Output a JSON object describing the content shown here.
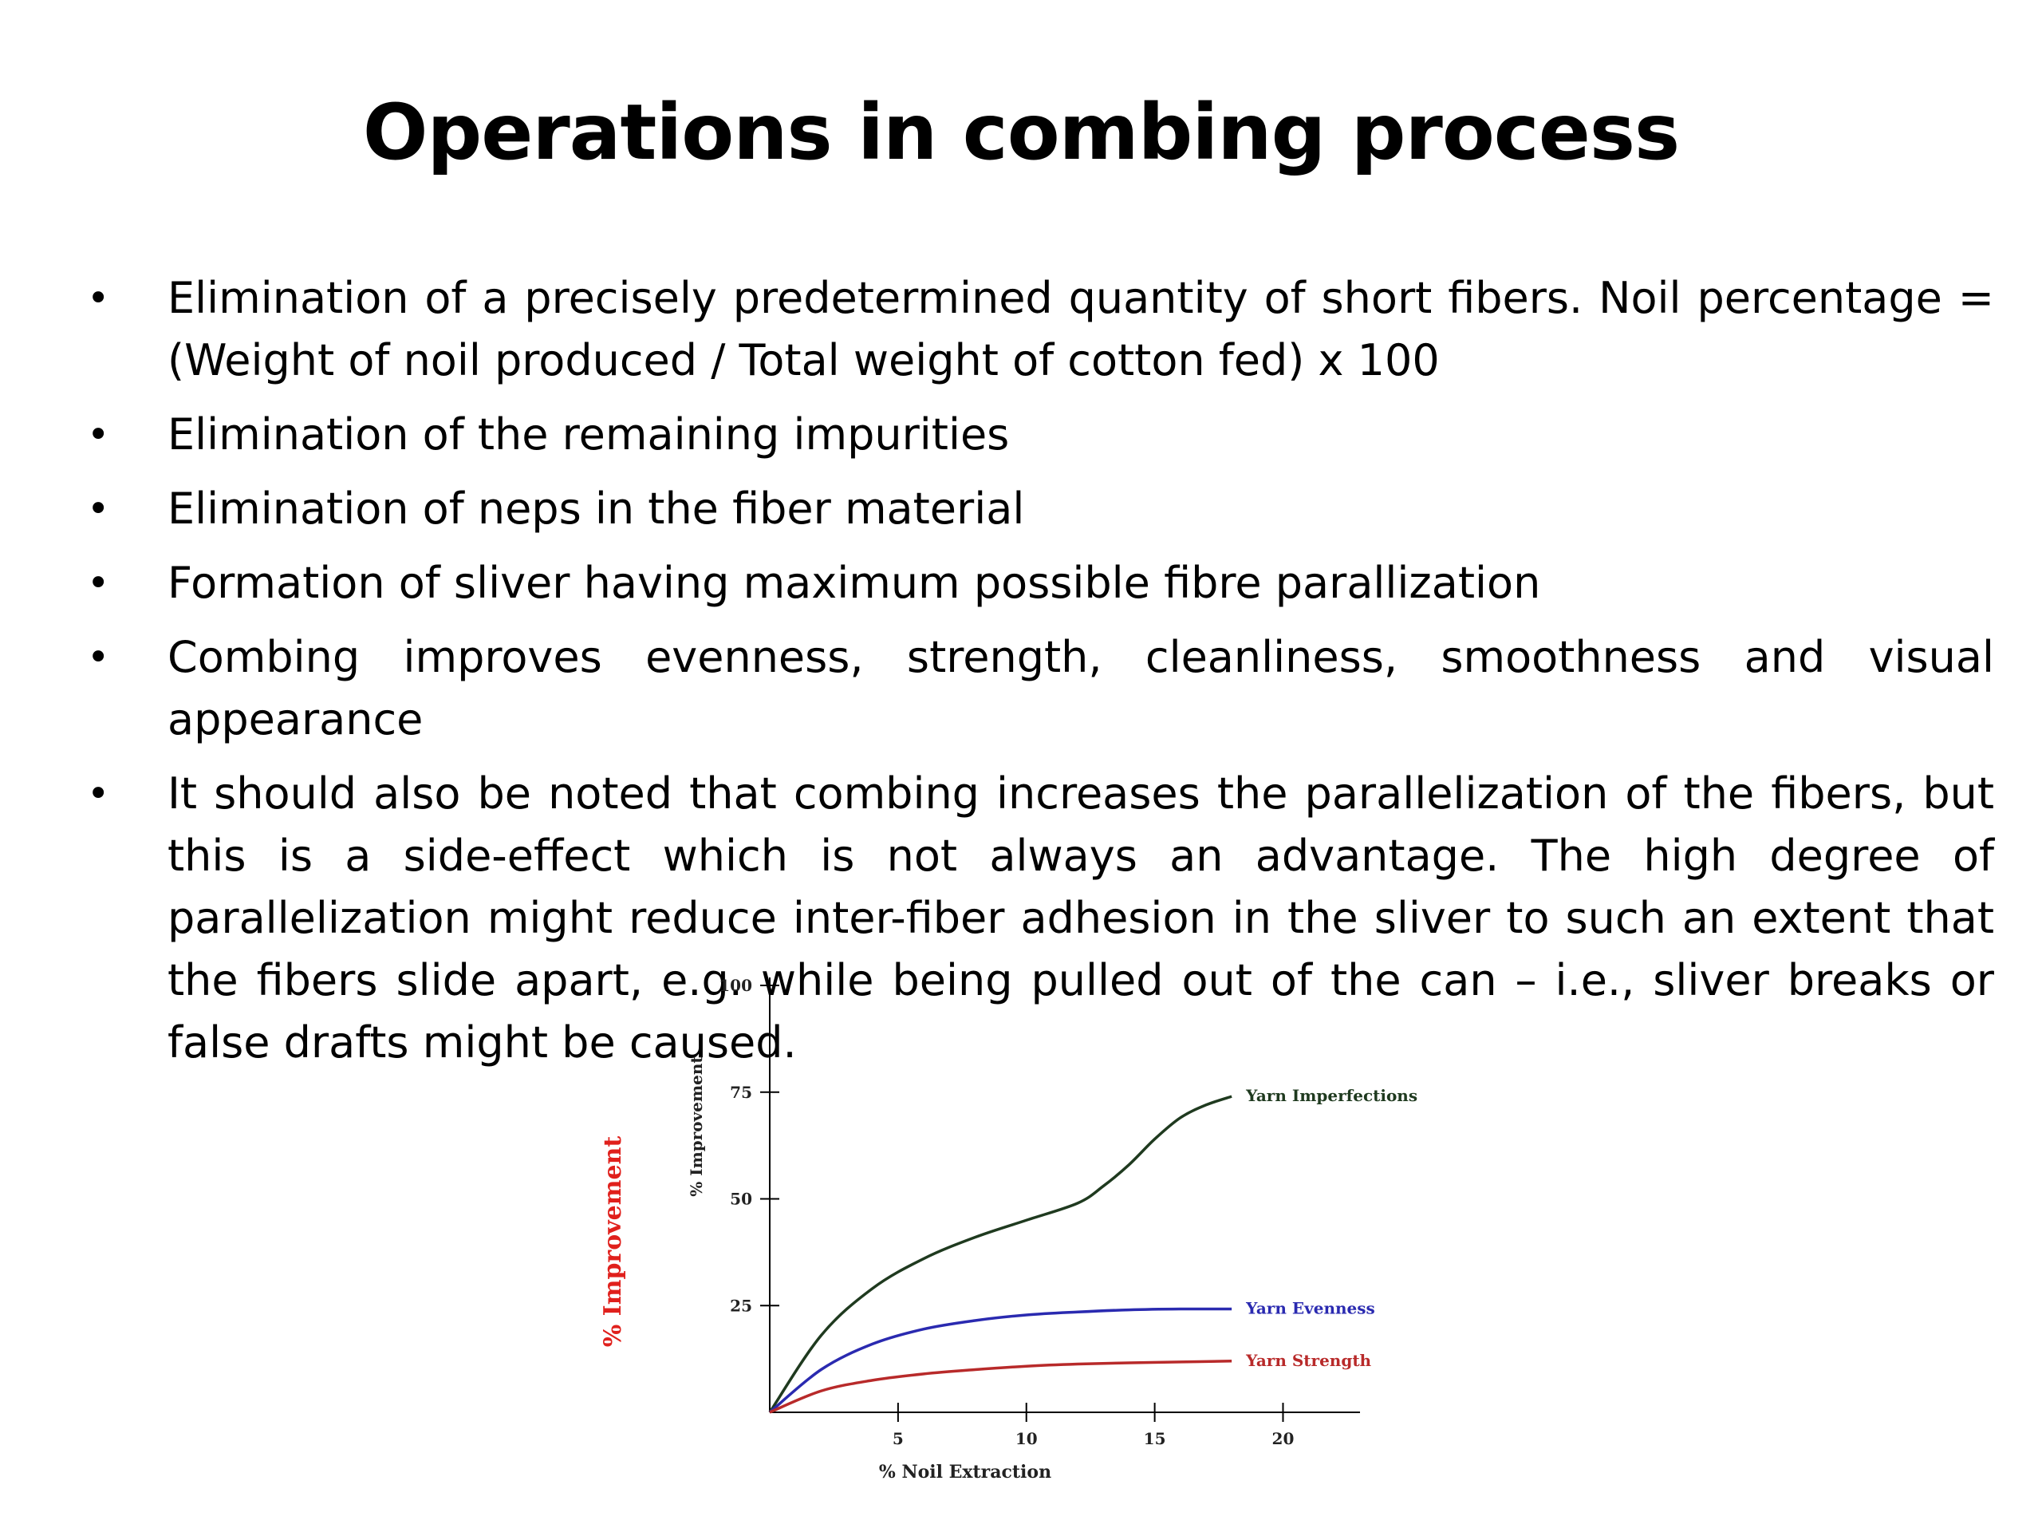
{
  "slide": {
    "title": "Operations in combing process",
    "bullets": [
      "Elimination of a precisely predetermined quantity of short fibers. Noil percentage = (Weight of noil produced / Total weight of cotton fed) x 100",
      "Elimination of the remaining impurities",
      "Elimination of neps in the fiber material",
      "Formation of sliver having maximum possible fibre parallization",
      "Combing improves evenness, strength, cleanliness, smoothness and visual appearance",
      "It should also be noted that combing increases the parallelization of the fibers, but this is a side-effect which is not always an advantage. The high degree of parallelization might reduce inter-fiber adhesion in the sliver to such an extent that the fibers slide apart, e.g. while being pulled out of the can – i.e., sliver breaks or false drafts might be caused."
    ],
    "bullet_glyph": "•"
  },
  "chart_data": {
    "type": "line",
    "xlabel": "% Noil Extraction",
    "ylabel": "% Improvement",
    "ylabel_outer": "% Improvement",
    "xlim": [
      0,
      23
    ],
    "ylim": [
      0,
      100
    ],
    "xticks": [
      5,
      10,
      15,
      20
    ],
    "yticks": [
      25,
      50,
      75,
      100
    ],
    "grid": false,
    "series": [
      {
        "name": "Yarn Imperfections",
        "color": "#1f3a1f",
        "x": [
          0,
          2,
          4,
          6,
          8,
          10,
          12,
          13,
          14,
          15,
          16,
          17,
          18
        ],
        "y": [
          0,
          18,
          29,
          36,
          41,
          45,
          49,
          53,
          58,
          64,
          69,
          72,
          74
        ]
      },
      {
        "name": "Yarn Evenness",
        "color": "#2a2ab0",
        "x": [
          0,
          2,
          4,
          6,
          8,
          10,
          12,
          14,
          16,
          18
        ],
        "y": [
          0,
          10,
          16,
          19.5,
          21.5,
          22.8,
          23.5,
          24,
          24.2,
          24.2
        ]
      },
      {
        "name": "Yarn Strength",
        "color": "#b82a2a",
        "x": [
          0,
          2,
          4,
          6,
          8,
          10,
          12,
          14,
          16,
          18
        ],
        "y": [
          0,
          5,
          7.5,
          9,
          10,
          10.8,
          11.3,
          11.6,
          11.8,
          12
        ]
      }
    ],
    "outer_label_color": "#e0201c"
  }
}
